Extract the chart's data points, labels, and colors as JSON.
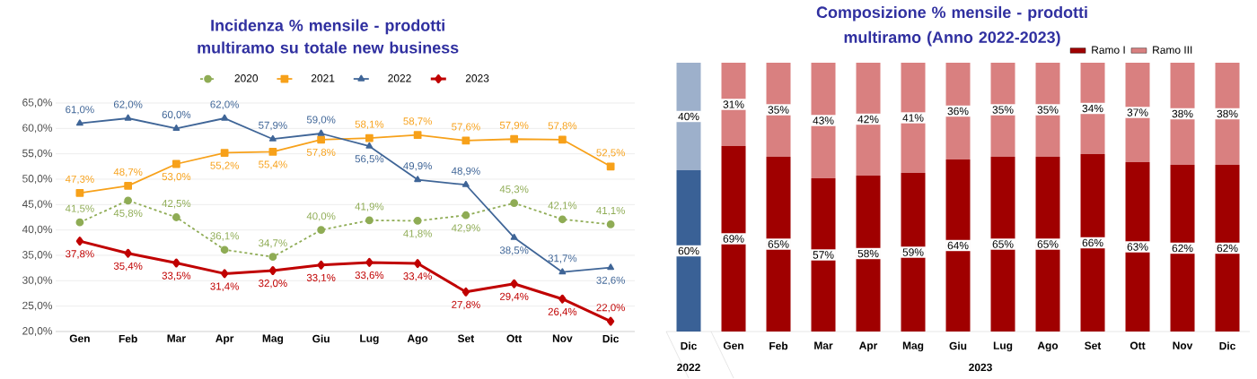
{
  "chart_data": [
    {
      "type": "line",
      "title": "Incidenza % mensile - prodotti multiramo su totale new business",
      "categories": [
        "Gen",
        "Feb",
        "Mar",
        "Apr",
        "Mag",
        "Giu",
        "Lug",
        "Ago",
        "Set",
        "Ott",
        "Nov",
        "Dic"
      ],
      "ylim": [
        20,
        65
      ],
      "yticks": [
        {
          "value": 20,
          "label": "20,0%"
        },
        {
          "value": 25,
          "label": "25,0%"
        },
        {
          "value": 30,
          "label": "30,0%"
        },
        {
          "value": 35,
          "label": "35,0%"
        },
        {
          "value": 40,
          "label": "40,0%"
        },
        {
          "value": 45,
          "label": "45,0%"
        },
        {
          "value": 50,
          "label": "50,0%"
        },
        {
          "value": 55,
          "label": "55,0%"
        },
        {
          "value": 60,
          "label": "60,0%"
        },
        {
          "value": 65,
          "label": "65,0%"
        }
      ],
      "grid": "y",
      "legend": "top",
      "series": [
        {
          "name": "2020",
          "color": "#8fac55",
          "line_style": "dashed",
          "marker": "circle",
          "values": [
            41.5,
            45.8,
            42.5,
            36.1,
            34.7,
            40.0,
            41.9,
            41.8,
            42.9,
            45.3,
            42.1,
            41.1
          ],
          "value_labels": [
            "41,5%",
            "45,8%",
            "42,5%",
            "36,1%",
            "34,7%",
            "40,0%",
            "41,9%",
            "41,8%",
            "42,9%",
            "45,3%",
            "42,1%",
            "41,1%"
          ]
        },
        {
          "name": "2021",
          "color": "#f7a11a",
          "line_style": "solid",
          "marker": "square",
          "values": [
            47.3,
            48.7,
            53.0,
            55.2,
            55.4,
            57.8,
            58.1,
            58.7,
            57.6,
            57.9,
            57.8,
            52.5
          ],
          "value_labels": [
            "47,3%",
            "48,7%",
            "53,0%",
            "55,2%",
            "55,4%",
            "57,8%",
            "58,1%",
            "58,7%",
            "57,6%",
            "57,9%",
            "57,8%",
            "52,5%"
          ]
        },
        {
          "name": "2022",
          "color": "#3f6597",
          "line_style": "solid",
          "marker": "triangle",
          "values": [
            61.0,
            62.0,
            60.0,
            62.0,
            57.9,
            59.0,
            56.5,
            49.9,
            48.9,
            38.5,
            31.7,
            32.6
          ],
          "value_labels": [
            "61,0%",
            "62,0%",
            "60,0%",
            "62,0%",
            "57,9%",
            "59,0%",
            "56,5%",
            "49,9%",
            "48,9%",
            "38,5%",
            "31,7%",
            "32,6%"
          ]
        },
        {
          "name": "2023",
          "color": "#c00000",
          "line_style": "solid",
          "marker": "diamond",
          "values": [
            37.8,
            35.4,
            33.5,
            31.4,
            32.0,
            33.1,
            33.6,
            33.4,
            27.8,
            29.4,
            26.4,
            22.0
          ],
          "value_labels": [
            "37,8%",
            "35,4%",
            "33,5%",
            "31,4%",
            "32,0%",
            "33,1%",
            "33,6%",
            "33,4%",
            "27,8%",
            "29,4%",
            "26,4%",
            "22,0%"
          ]
        }
      ]
    },
    {
      "type": "bar",
      "stacked": true,
      "title": "Composizione %  mensile - prodotti multiramo (Anno 2022-2023)",
      "categories": [
        "Dic",
        "Gen",
        "Feb",
        "Mar",
        "Apr",
        "Mag",
        "Giu",
        "Lug",
        "Ago",
        "Set",
        "Ott",
        "Nov",
        "Dic"
      ],
      "annotations": [
        "2022",
        "2023"
      ],
      "legend": "top right",
      "series": [
        {
          "name": "Ramo I",
          "colors": [
            "#3a6196",
            "#a00000",
            "#a00000",
            "#a00000",
            "#a00000",
            "#a00000",
            "#a00000",
            "#a00000",
            "#a00000",
            "#a00000",
            "#a00000",
            "#a00000",
            "#a00000"
          ],
          "values": [
            60,
            69,
            65,
            57,
            58,
            59,
            64,
            65,
            65,
            66,
            63,
            62,
            62
          ],
          "value_labels": [
            "60%",
            "69%",
            "65%",
            "57%",
            "58%",
            "59%",
            "64%",
            "65%",
            "65%",
            "66%",
            "63%",
            "62%",
            "62%"
          ]
        },
        {
          "name": "Ramo III",
          "colors": [
            "#9db0cb",
            "#d98080",
            "#d98080",
            "#d98080",
            "#d98080",
            "#d98080",
            "#d98080",
            "#d98080",
            "#d98080",
            "#d98080",
            "#d98080",
            "#d98080",
            "#d98080"
          ],
          "values": [
            40,
            31,
            35,
            43,
            42,
            41,
            36,
            35,
            35,
            34,
            37,
            38,
            38
          ],
          "value_labels": [
            "40%",
            "31%",
            "35%",
            "43%",
            "42%",
            "41%",
            "36%",
            "35%",
            "35%",
            "34%",
            "37%",
            "38%",
            "38%"
          ]
        }
      ]
    }
  ]
}
